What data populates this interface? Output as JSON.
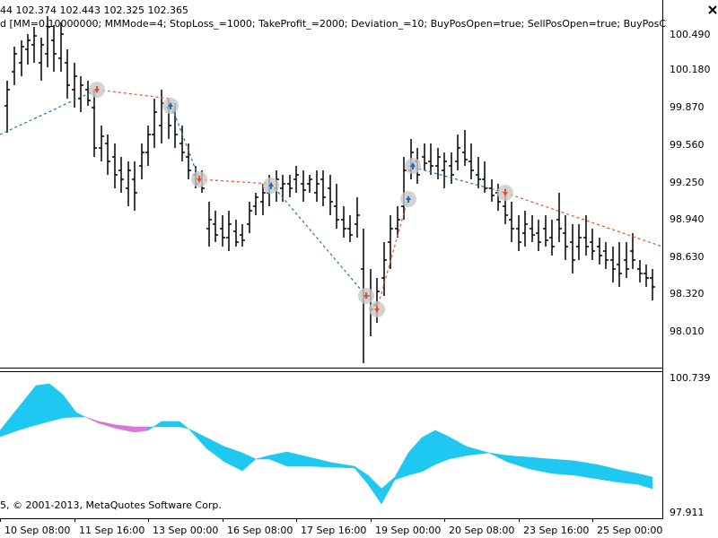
{
  "header": {
    "ohlc_text": "44  102.374 102.443 102.325 102.365",
    "params_text": "d [MM=0.10000000; MMMode=4; StopLoss_=1000; TakeProfit_=2000; Deviation_=10; BuyPosOpen=true; SellPosOpen=true; BuyPosC",
    "close_icon": "close-icon"
  },
  "indicator": {
    "copyright_text": "5, © 2001-2013, MetaQuotes Software Corp.",
    "max_label": "100.739",
    "min_label": "97.911",
    "up_color": "#1EC8F0",
    "down_color": "#D878D8"
  },
  "price_axis": [
    "100.490",
    "100.180",
    "99.870",
    "99.560",
    "99.250",
    "98.940",
    "98.630",
    "98.320",
    "98.010"
  ],
  "time_axis": [
    "10 Sep 08:00",
    "11 Sep 16:00",
    "13 Sep 00:00",
    "16 Sep 08:00",
    "17 Sep 16:00",
    "19 Sep 00:00",
    "20 Sep 08:00",
    "23 Sep 16:00",
    "25 Sep 00:00"
  ],
  "trade_colors": {
    "buy": "#1F6FB5",
    "sell": "#E8502A",
    "marker_ring": "#C8C8C8"
  },
  "bar_color": "#000000"
}
